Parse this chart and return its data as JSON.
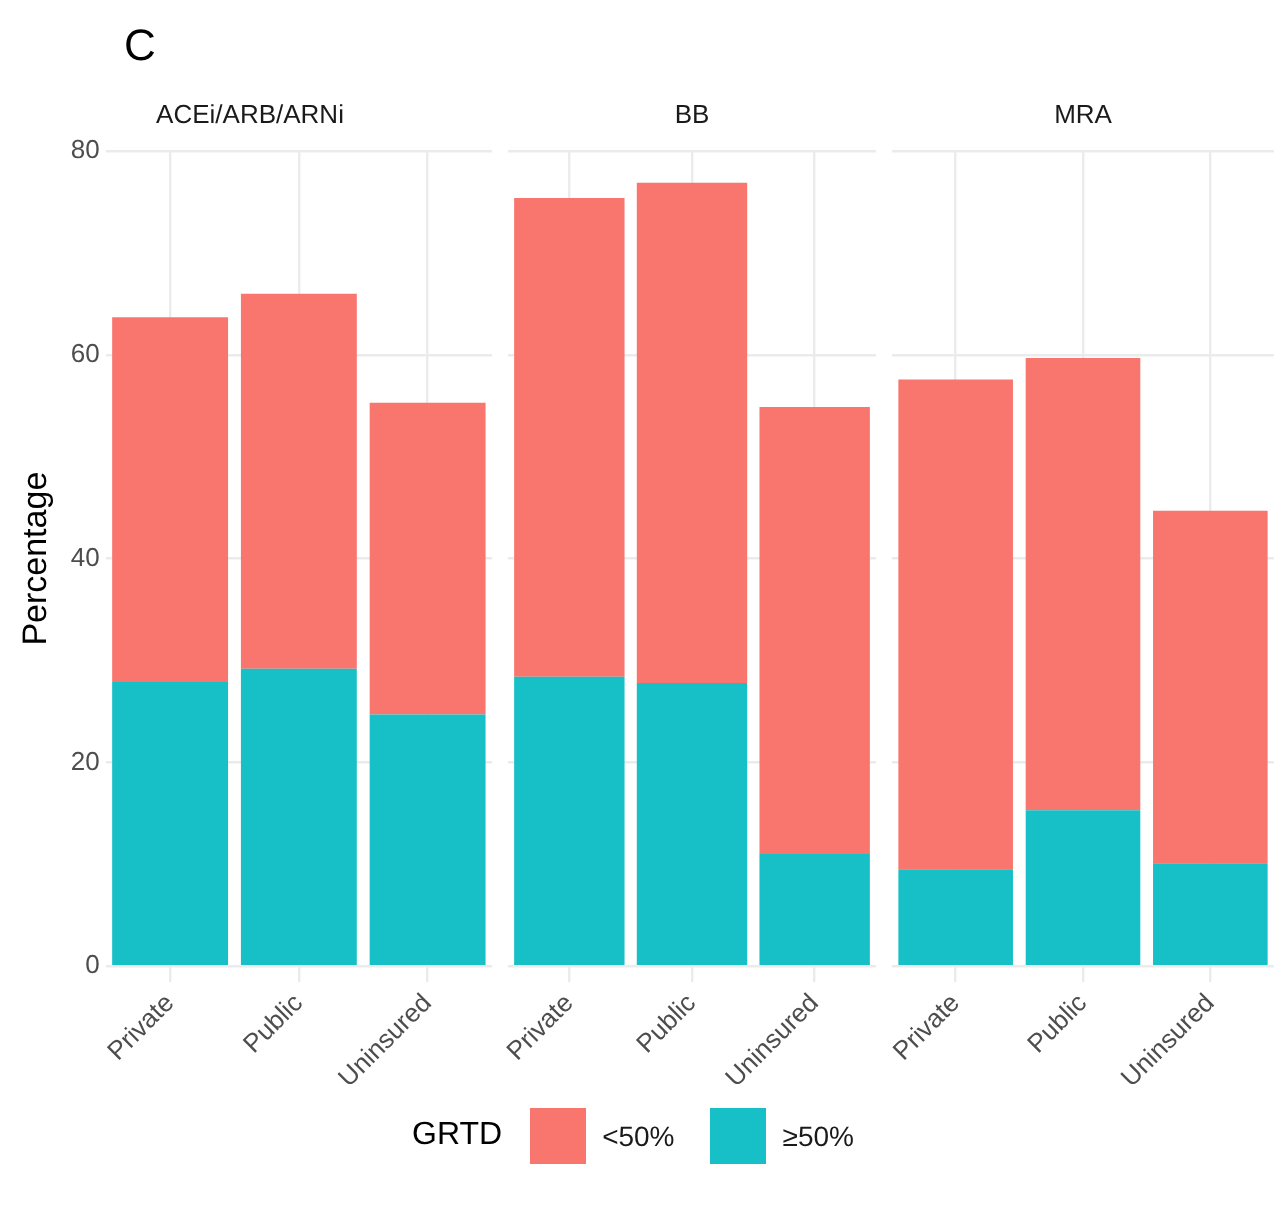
{
  "chart_data": [
    {
      "type": "bar",
      "title": "ACEi/ARB/ARNi",
      "annotations": [
        "C"
      ],
      "ylabel": "Percentage",
      "legend_title": "GRTD",
      "legend": "bottom",
      "categories": [
        "Private",
        "Public",
        "Uninsured"
      ],
      "stacked": true,
      "grid": true,
      "ylim": [
        0,
        80
      ],
      "yticks": [
        0,
        20,
        40,
        60,
        80
      ],
      "series": [
        {
          "name": "≥50%",
          "color": "#17c0c6",
          "values": [
            27.9,
            29.2,
            24.7
          ]
        },
        {
          "name": "<50%",
          "color": "#f8766d",
          "values": [
            35.8,
            36.8,
            30.6
          ]
        }
      ]
    },
    {
      "type": "bar",
      "title": "BB",
      "categories": [
        "Private",
        "Public",
        "Uninsured"
      ],
      "stacked": true,
      "grid": true,
      "ylim": [
        0,
        80
      ],
      "yticks": [
        0,
        20,
        40,
        60,
        80
      ],
      "tick_labels": "x",
      "series": [
        {
          "color": "#17c0c6",
          "values": [
            28.4,
            27.8,
            11.0
          ]
        },
        {
          "color": "#f8766d",
          "values": [
            47.0,
            49.1,
            43.9
          ]
        }
      ]
    },
    {
      "type": "bar",
      "title": "MRA",
      "categories": [
        "Private",
        "Public",
        "Uninsured"
      ],
      "stacked": true,
      "grid": true,
      "ylim": [
        0,
        80
      ],
      "yticks": [
        0,
        20,
        40,
        60,
        80
      ],
      "tick_labels": "x",
      "series": [
        {
          "color": "#17c0c6",
          "values": [
            9.5,
            15.3,
            10.1
          ]
        },
        {
          "color": "#f8766d",
          "values": [
            48.1,
            44.4,
            34.6
          ]
        }
      ]
    }
  ]
}
